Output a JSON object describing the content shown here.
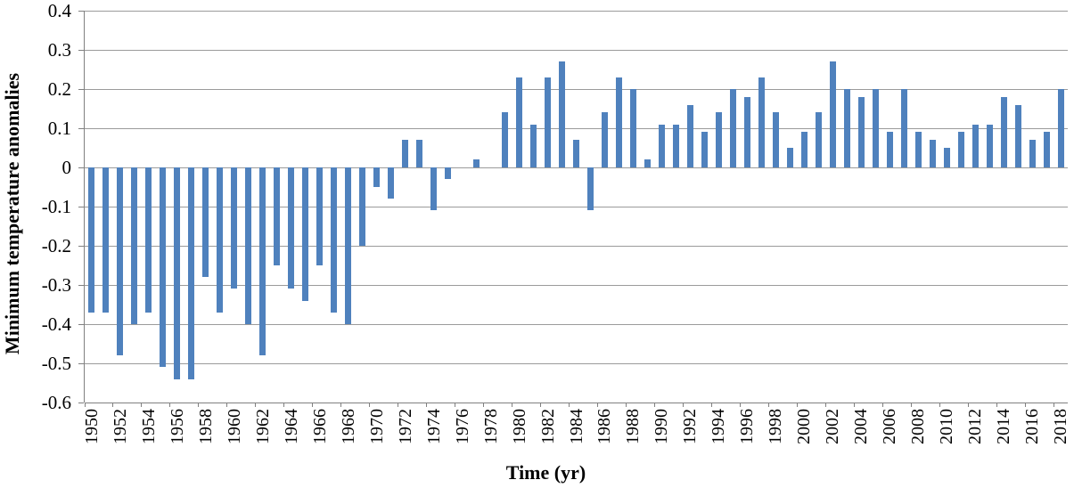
{
  "figure": {
    "bar_color": "#4F81BD",
    "gridline_color": "#9B9B9B",
    "axis_color": "#808080",
    "background_color": "#FFFFFF",
    "text_color": "#000000"
  },
  "chart_data": {
    "type": "bar",
    "title": "",
    "xlabel": "Time (yr)",
    "ylabel": "Minimum temperature anomalies",
    "ylim": [
      -0.6,
      0.4
    ],
    "ytick_step": 0.1,
    "ytick_labels": [
      "0.4",
      "0.3",
      "0.2",
      "0.1",
      "0",
      "-0.1",
      "-0.2",
      "-0.3",
      "-0.4",
      "-0.5",
      "-0.6"
    ],
    "ytick_values": [
      0.4,
      0.3,
      0.2,
      0.1,
      0,
      -0.1,
      -0.2,
      -0.3,
      -0.4,
      -0.5,
      -0.6
    ],
    "xtick_labels": [
      "1950",
      "1952",
      "1954",
      "1956",
      "1958",
      "1960",
      "1962",
      "1964",
      "1966",
      "1968",
      "1970",
      "1972",
      "1974",
      "1976",
      "1978",
      "1980",
      "1982",
      "1984",
      "1986",
      "1988",
      "1990",
      "1992",
      "1994",
      "1996",
      "1998",
      "2000",
      "2002",
      "2004",
      "2006",
      "2008",
      "2010",
      "2012",
      "2014",
      "2016",
      "2018"
    ],
    "grid": true,
    "legend": false,
    "categories": [
      1950,
      1951,
      1952,
      1953,
      1954,
      1955,
      1956,
      1957,
      1958,
      1959,
      1960,
      1961,
      1962,
      1963,
      1964,
      1965,
      1966,
      1967,
      1968,
      1969,
      1970,
      1971,
      1972,
      1973,
      1974,
      1975,
      1976,
      1977,
      1978,
      1979,
      1980,
      1981,
      1982,
      1983,
      1984,
      1985,
      1986,
      1987,
      1988,
      1989,
      1990,
      1991,
      1992,
      1993,
      1994,
      1995,
      1996,
      1997,
      1998,
      1999,
      2000,
      2001,
      2002,
      2003,
      2004,
      2005,
      2006,
      2007,
      2008,
      2009,
      2010,
      2011,
      2012,
      2013,
      2014,
      2015,
      2016,
      2017,
      2018
    ],
    "values": [
      -0.37,
      -0.37,
      -0.48,
      -0.4,
      -0.37,
      -0.51,
      -0.54,
      -0.54,
      -0.28,
      -0.37,
      -0.31,
      -0.4,
      -0.48,
      -0.25,
      -0.31,
      -0.34,
      -0.25,
      -0.37,
      -0.4,
      -0.2,
      -0.05,
      -0.08,
      0.07,
      0.07,
      -0.11,
      -0.03,
      0.0,
      0.02,
      0.0,
      0.14,
      0.23,
      0.11,
      0.23,
      0.27,
      0.07,
      -0.11,
      0.14,
      0.23,
      0.2,
      0.02,
      0.11,
      0.11,
      0.16,
      0.09,
      0.14,
      0.2,
      0.18,
      0.23,
      0.14,
      0.05,
      0.09,
      0.14,
      0.27,
      0.2,
      0.18,
      0.2,
      0.09,
      0.2,
      0.09,
      0.07,
      0.05,
      0.09,
      0.11,
      0.11,
      0.18,
      0.16,
      0.07,
      0.09,
      0.2
    ]
  }
}
